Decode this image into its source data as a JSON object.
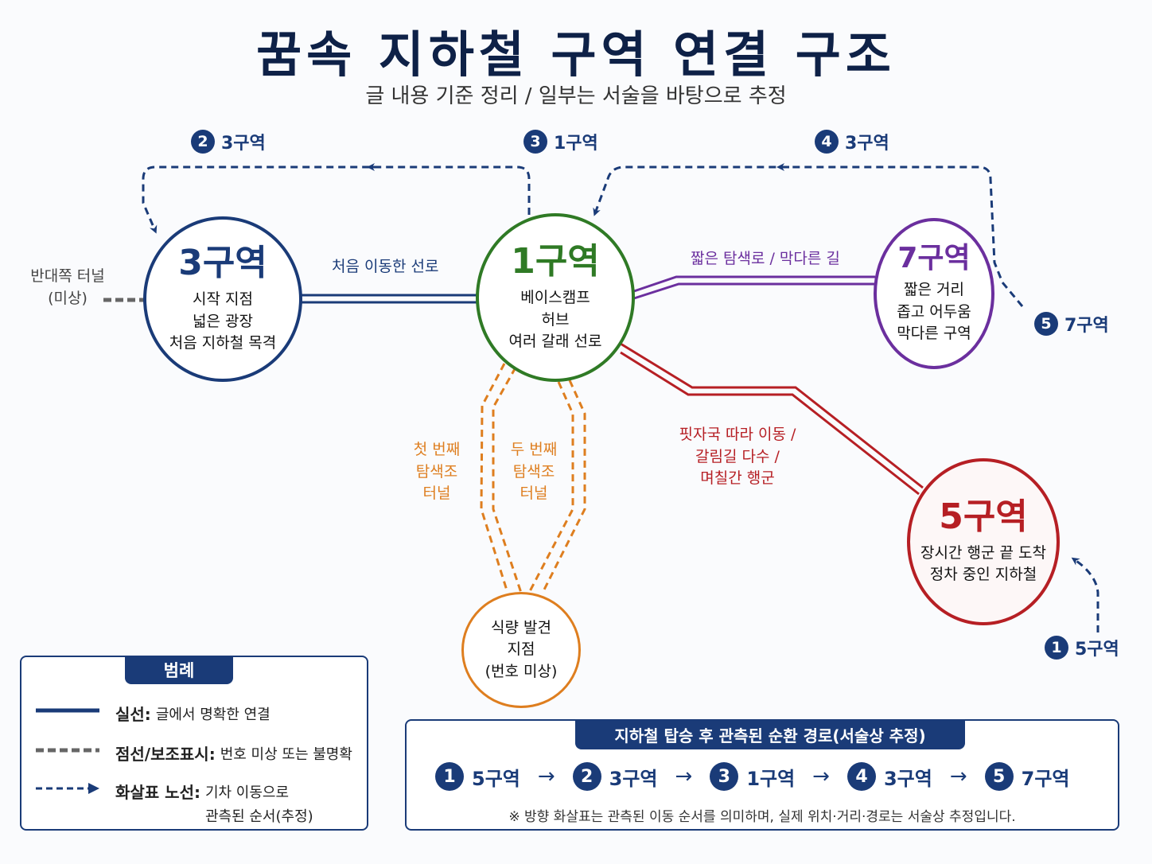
{
  "title": "꿈속 지하철 구역 연결 구조",
  "subtitle": "글 내용 기준 정리 / 일부는 서술을 바탕으로 추정",
  "colors": {
    "navy": "#1a3b78",
    "green": "#2f7a25",
    "purple": "#6b2f9e",
    "red": "#b61f24",
    "orange": "#de7e1f",
    "gray": "#666666"
  },
  "nodes": {
    "zone3": {
      "name": "3구역",
      "lines": [
        "시작 지점",
        "넓은 광장",
        "처음 지하철 목격"
      ]
    },
    "zone1": {
      "name": "1구역",
      "lines": [
        "베이스캠프",
        "허브",
        "여러 갈래 선로"
      ]
    },
    "zone7": {
      "name": "7구역",
      "lines": [
        "짧은 거리",
        "좁고 어두움",
        "막다른 구역"
      ]
    },
    "zone5": {
      "name": "5구역",
      "lines": [
        "장시간 행군 끝 도착",
        "정차 중인 지하철"
      ]
    },
    "food": {
      "lines": [
        "식량 발견",
        "지점",
        "(번호 미상)"
      ]
    }
  },
  "edge_labels": {
    "z3_z1": "처음 이동한 선로",
    "z1_z7": "짧은 탐색로 / 막다른 길",
    "z1_z5": [
      "핏자국 따라 이동 /",
      "갈림길 다수 /",
      "며칠간 행군"
    ],
    "tunnel1": [
      "첫 번째",
      "탐색조",
      "터널"
    ],
    "tunnel2": [
      "두 번째",
      "탐색조",
      "터널"
    ],
    "opposite": [
      "반대쪽 터널",
      "(미상)"
    ]
  },
  "train_markers": [
    {
      "num": "2",
      "zone": "3구역"
    },
    {
      "num": "3",
      "zone": "1구역"
    },
    {
      "num": "4",
      "zone": "3구역"
    },
    {
      "num": "5",
      "zone": "7구역"
    },
    {
      "num": "1",
      "zone": "5구역"
    }
  ],
  "legend": {
    "title": "범례",
    "solid": {
      "key": "실선:",
      "desc": "글에서 명확한 연결"
    },
    "dotted": {
      "key": "점선/보조표시:",
      "desc": "번호 미상 또는 불명확"
    },
    "arrow": {
      "key": "화살표 노선:",
      "desc1": "기차 이동으로",
      "desc2": "관측된 순서(추정)"
    }
  },
  "sequence": {
    "title": "지하철 탑승 후 관측된 순환 경로(서술상 추정)",
    "steps": [
      {
        "num": "1",
        "zone": "5구역"
      },
      {
        "num": "2",
        "zone": "3구역"
      },
      {
        "num": "3",
        "zone": "1구역"
      },
      {
        "num": "4",
        "zone": "3구역"
      },
      {
        "num": "5",
        "zone": "7구역"
      }
    ],
    "arrow": "→",
    "note": "※ 방향 화살표는 관측된 이동 순서를 의미하며, 실제 위치·거리·경로는 서술상 추정입니다."
  }
}
